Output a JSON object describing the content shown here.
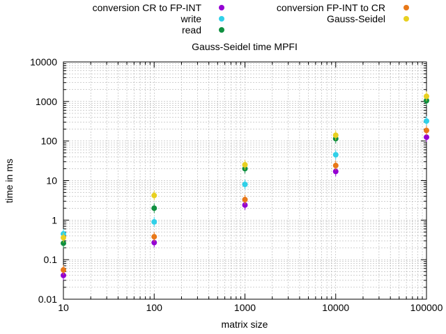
{
  "chart_data": {
    "type": "scatter",
    "title": "Gauss-Seidel time MPFI",
    "xlabel": "matrix size",
    "ylabel": "time in ms",
    "x_scale": "log",
    "y_scale": "log",
    "xlim": [
      10,
      100000
    ],
    "ylim": [
      0.01,
      10000
    ],
    "x_ticks": [
      "10",
      "100",
      "1000",
      "10000",
      "100000"
    ],
    "y_ticks": [
      "0.01",
      "0.1",
      "1",
      "10",
      "100",
      "1000",
      "10000"
    ],
    "grid": true,
    "legend_position": "top",
    "series": [
      {
        "name": "conversion CR to FP-INT",
        "color": "#9400d3",
        "x": [
          10,
          100,
          1000,
          10000,
          100000
        ],
        "values": [
          0.04,
          0.27,
          2.4,
          17,
          125
        ]
      },
      {
        "name": "write",
        "color": "#30d0e8",
        "x": [
          10,
          100,
          1000,
          10000,
          100000
        ],
        "values": [
          0.45,
          0.9,
          8,
          45,
          320
        ]
      },
      {
        "name": "read",
        "color": "#109040",
        "x": [
          10,
          100,
          1000,
          10000,
          100000
        ],
        "values": [
          0.26,
          2.0,
          20,
          115,
          1050
        ]
      },
      {
        "name": "conversion FP-INT to CR",
        "color": "#e87818",
        "x": [
          10,
          100,
          1000,
          10000,
          100000
        ],
        "values": [
          0.055,
          0.38,
          3.3,
          24,
          185
        ]
      },
      {
        "name": "Gauss-Seidel",
        "color": "#e8d020",
        "x": [
          10,
          100,
          1000,
          10000,
          100000
        ],
        "values": [
          0.36,
          4.2,
          25,
          140,
          1350
        ]
      }
    ]
  }
}
